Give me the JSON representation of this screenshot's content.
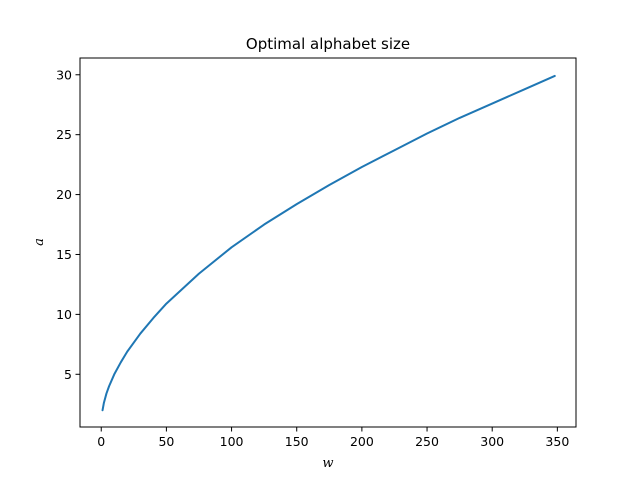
{
  "chart_data": {
    "type": "line",
    "title": "Optimal alphabet size",
    "xlabel": "w",
    "ylabel": "a",
    "xlim": [
      -16.3,
      364.3
    ],
    "ylim": [
      0.6,
      31.4
    ],
    "xticks": [
      0,
      50,
      100,
      150,
      200,
      250,
      300,
      350
    ],
    "yticks": [
      5,
      10,
      15,
      20,
      25,
      30
    ],
    "grid": false,
    "legend": "none",
    "series": [
      {
        "color": "#1f77b4",
        "x": [
          1,
          2,
          4,
          6,
          10,
          15,
          20,
          30,
          40,
          50,
          60,
          75,
          100,
          125,
          150,
          175,
          200,
          225,
          250,
          275,
          300,
          325,
          348
        ],
        "y": [
          2.0,
          2.6,
          3.4,
          4.0,
          5.0,
          6.0,
          6.9,
          8.4,
          9.7,
          10.9,
          11.9,
          13.4,
          15.6,
          17.5,
          19.2,
          20.8,
          22.3,
          23.7,
          25.1,
          26.4,
          27.6,
          28.8,
          29.9
        ]
      }
    ]
  }
}
